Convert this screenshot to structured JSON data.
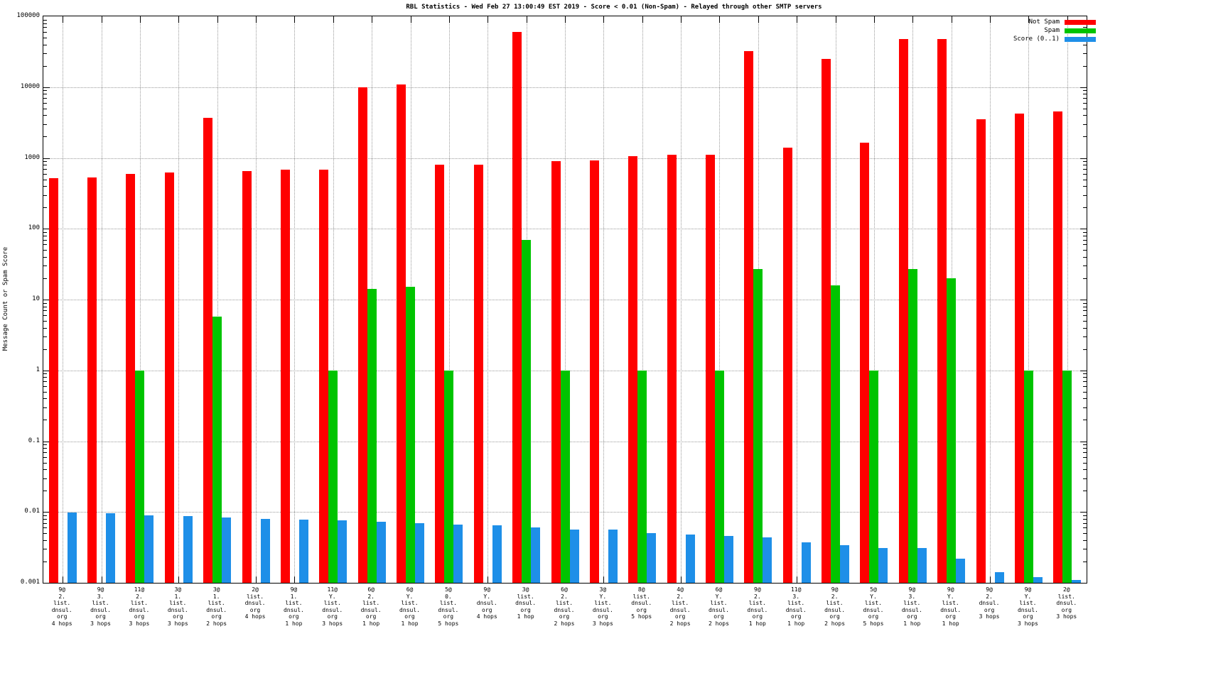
{
  "title": "RBL Statistics - Wed Feb 27 13:00:49 EST 2019 - Score < 0.01 (Non-Spam) - Relayed through other SMTP servers",
  "ylabel": "Message Count or Spam Score",
  "legend": [
    {
      "label": "Not Spam",
      "color": "#ff0000"
    },
    {
      "label": "Spam",
      "color": "#00c400"
    },
    {
      "label": "Score (0..1)",
      "color": "#1e8fe8"
    }
  ],
  "chart_data": {
    "type": "bar",
    "yscale": "log",
    "ylim": [
      0.001,
      100000
    ],
    "grid": true,
    "legend_position": "top-right",
    "yticks": [
      "100000",
      "10000",
      "1000",
      "100",
      "10",
      "1",
      "0.1",
      "0.01",
      "0.001"
    ],
    "categories": [
      [
        "9@",
        "2.",
        "list.",
        "dnsul.",
        "org",
        "4 hops"
      ],
      [
        "9@",
        "3.",
        "list.",
        "dnsul.",
        "org",
        "3 hops"
      ],
      [
        "11@",
        "2.",
        "list.",
        "dnsul.",
        "org",
        "3 hops"
      ],
      [
        "3@",
        "1.",
        "list.",
        "dnsul.",
        "org",
        "3 hops"
      ],
      [
        "3@",
        "1.",
        "list.",
        "dnsul.",
        "org",
        "2 hops"
      ],
      [
        "2@",
        "list.",
        "dnsul.",
        "org",
        "4 hops"
      ],
      [
        "9@",
        "1.",
        "list.",
        "dnsul.",
        "org",
        "1 hop"
      ],
      [
        "11@",
        "Y.",
        "list.",
        "dnsul.",
        "org",
        "3 hops"
      ],
      [
        "6@",
        "2.",
        "list.",
        "dnsul.",
        "org",
        "1 hop"
      ],
      [
        "6@",
        "Y.",
        "list.",
        "dnsul.",
        "org",
        "1 hop"
      ],
      [
        "5@",
        "0.",
        "list.",
        "dnsul.",
        "org",
        "5 hops"
      ],
      [
        "9@",
        "Y.",
        "dnsul.",
        "org",
        "4 hops"
      ],
      [
        "3@",
        "list.",
        "dnsul.",
        "org",
        "1 hop"
      ],
      [
        "6@",
        "2.",
        "list.",
        "dnsul.",
        "org",
        "2 hops"
      ],
      [
        "3@",
        "Y.",
        "list.",
        "dnsul.",
        "org",
        "3 hops"
      ],
      [
        "8@",
        "list.",
        "dnsul.",
        "org",
        "5 hops"
      ],
      [
        "4@",
        "2.",
        "list.",
        "dnsul.",
        "org",
        "2 hops"
      ],
      [
        "6@",
        "Y.",
        "list.",
        "dnsul.",
        "org",
        "2 hops"
      ],
      [
        "9@",
        "2.",
        "list.",
        "dnsul.",
        "org",
        "1 hop"
      ],
      [
        "11@",
        "3.",
        "list.",
        "dnsul.",
        "org",
        "1 hop"
      ],
      [
        "9@",
        "2.",
        "list.",
        "dnsul.",
        "org",
        "2 hops"
      ],
      [
        "5@",
        "Y.",
        "list.",
        "dnsul.",
        "org",
        "5 hops"
      ],
      [
        "9@",
        "3.",
        "list.",
        "dnsul.",
        "org",
        "1 hop"
      ],
      [
        "9@",
        "Y.",
        "list.",
        "dnsul.",
        "org",
        "1 hop"
      ],
      [
        "9@",
        "2.",
        "dnsul.",
        "org",
        "3 hops"
      ],
      [
        "9@",
        "Y.",
        "list.",
        "dnsul.",
        "org",
        "3 hops"
      ],
      [
        "2@",
        "list.",
        "dnsul.",
        "org",
        "3 hops"
      ]
    ],
    "series": [
      {
        "name": "Not Spam",
        "color": "#ff0000",
        "values": [
          520,
          530,
          600,
          620,
          3700,
          650,
          680,
          680,
          10000,
          11000,
          800,
          800,
          60000,
          900,
          930,
          1050,
          1100,
          1120,
          32000,
          1400,
          25000,
          1650,
          48000,
          48000,
          3500,
          4200,
          4500
        ]
      },
      {
        "name": "Spam",
        "color": "#00c400",
        "values": [
          null,
          null,
          1,
          null,
          5.7,
          null,
          null,
          1,
          14,
          15,
          1,
          null,
          70,
          1,
          null,
          1,
          null,
          1,
          27,
          null,
          16,
          1,
          27,
          20,
          null,
          1,
          1
        ]
      },
      {
        "name": "Score (0..1)",
        "color": "#1e8fe8",
        "values": [
          0.0098,
          0.0097,
          0.009,
          0.0087,
          0.0083,
          0.008,
          0.0078,
          0.0076,
          0.0073,
          0.007,
          0.0066,
          0.0065,
          0.006,
          0.0057,
          0.0056,
          0.005,
          0.0048,
          0.0046,
          0.0044,
          0.0037,
          0.0034,
          0.0031,
          0.0031,
          0.0022,
          0.0014,
          0.0012,
          0.0011
        ]
      }
    ]
  }
}
